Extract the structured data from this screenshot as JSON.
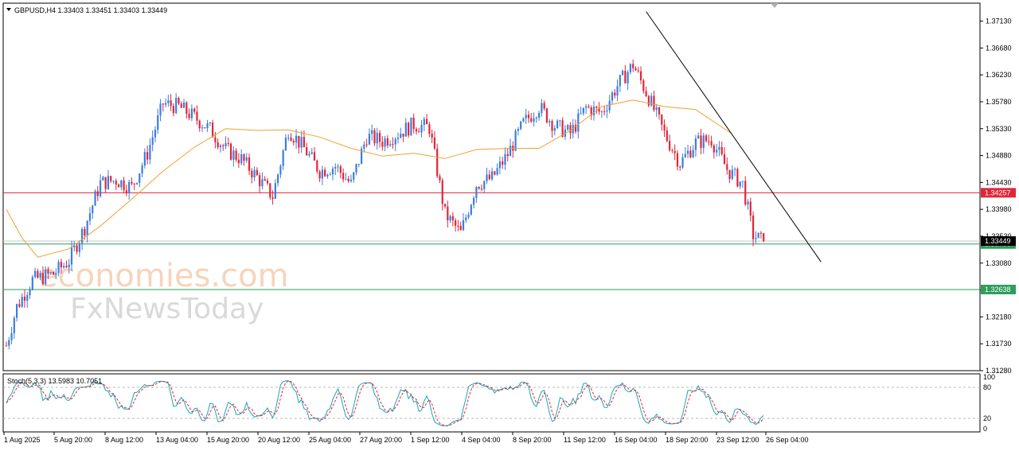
{
  "chart_data": {
    "type": "candlestick",
    "symbol_header": "GBPUSD,H4  1.33403 1.33451 1.33403 1.33449",
    "symbol": "GBPUSD",
    "timeframe": "H4",
    "ohlc": {
      "open": 1.33403,
      "high": 1.33451,
      "low": 1.33403,
      "close": 1.33449
    },
    "price_axis_ticks": [
      "1.37130",
      "1.36680",
      "1.36230",
      "1.35780",
      "1.35330",
      "1.34880",
      "1.34430",
      "1.33980",
      "1.33530",
      "1.33080",
      "1.32630",
      "1.32180",
      "1.31730",
      "1.31280"
    ],
    "ylim": [
      1.3128,
      1.3743
    ],
    "time_axis_labels": [
      "1 Aug 2025",
      "5 Aug 20:00",
      "8 Aug 12:00",
      "13 Aug 04:00",
      "15 Aug 20:00",
      "20 Aug 12:00",
      "25 Aug 04:00",
      "27 Aug 20:00",
      "1 Sep 12:00",
      "4 Sep 04:00",
      "8 Sep 20:00",
      "11 Sep 12:00",
      "16 Sep 04:00",
      "18 Sep 20:00",
      "23 Sep 12:00",
      "26 Sep 04:00"
    ],
    "horizontal_levels": [
      {
        "label": "1.34257",
        "value": 1.34257,
        "color": "#e0263a"
      },
      {
        "label": "1.33400",
        "value": 1.334,
        "color": "#2e9e5b"
      },
      {
        "label": "1.32638",
        "value": 1.32638,
        "color": "#2e9e5b"
      }
    ],
    "current_price": {
      "label": "1.33449",
      "value": 1.33449
    },
    "trendline": {
      "from": {
        "time": "16 Sep 04:00",
        "price": 1.3729
      },
      "to": {
        "time": "26 Sep 20:00",
        "price": 1.331
      }
    },
    "moving_average": [
      [
        0,
        1.3398
      ],
      [
        6,
        1.335
      ],
      [
        12,
        1.3318
      ],
      [
        24,
        1.3332
      ],
      [
        36,
        1.337
      ],
      [
        48,
        1.3415
      ],
      [
        60,
        1.3462
      ],
      [
        72,
        1.3502
      ],
      [
        84,
        1.3533
      ],
      [
        96,
        1.353
      ],
      [
        108,
        1.3531
      ],
      [
        120,
        1.3519
      ],
      [
        132,
        1.35
      ],
      [
        144,
        1.3487
      ],
      [
        156,
        1.3492
      ],
      [
        168,
        1.3483
      ],
      [
        180,
        1.3498
      ],
      [
        192,
        1.35
      ],
      [
        204,
        1.35
      ],
      [
        216,
        1.353
      ],
      [
        228,
        1.357
      ],
      [
        240,
        1.3581
      ],
      [
        252,
        1.357
      ],
      [
        264,
        1.3565
      ],
      [
        278,
        1.3524
      ]
    ],
    "price_path": [
      [
        0,
        1.317
      ],
      [
        4,
        1.3235
      ],
      [
        10,
        1.328
      ],
      [
        18,
        1.329
      ],
      [
        24,
        1.3312
      ],
      [
        30,
        1.3368
      ],
      [
        36,
        1.3442
      ],
      [
        42,
        1.3447
      ],
      [
        48,
        1.3435
      ],
      [
        54,
        1.3492
      ],
      [
        60,
        1.3575
      ],
      [
        66,
        1.357
      ],
      [
        72,
        1.3552
      ],
      [
        78,
        1.3532
      ],
      [
        84,
        1.3498
      ],
      [
        90,
        1.3482
      ],
      [
        96,
        1.3452
      ],
      [
        102,
        1.342
      ],
      [
        108,
        1.3532
      ],
      [
        114,
        1.35
      ],
      [
        120,
        1.3462
      ],
      [
        126,
        1.347
      ],
      [
        132,
        1.344
      ],
      [
        138,
        1.352
      ],
      [
        144,
        1.3512
      ],
      [
        150,
        1.3525
      ],
      [
        156,
        1.354
      ],
      [
        162,
        1.3535
      ],
      [
        168,
        1.339
      ],
      [
        174,
        1.3358
      ],
      [
        180,
        1.344
      ],
      [
        186,
        1.345
      ],
      [
        192,
        1.349
      ],
      [
        198,
        1.3542
      ],
      [
        204,
        1.357
      ],
      [
        210,
        1.3538
      ],
      [
        216,
        1.3525
      ],
      [
        222,
        1.3568
      ],
      [
        228,
        1.356
      ],
      [
        234,
        1.3605
      ],
      [
        240,
        1.364
      ],
      [
        246,
        1.3585
      ],
      [
        252,
        1.3525
      ],
      [
        258,
        1.3475
      ],
      [
        264,
        1.351
      ],
      [
        270,
        1.3515
      ],
      [
        276,
        1.3465
      ],
      [
        282,
        1.344
      ],
      [
        286,
        1.3355
      ],
      [
        290,
        1.3343
      ]
    ],
    "indicator": {
      "label": "Stoch(5,3,3) 13.5983 10.7051",
      "levels": [
        "80",
        "20"
      ],
      "axis_ticks": [
        "100",
        "80",
        "20",
        "0"
      ],
      "main_color": "#1aa6b7",
      "signal_color": "#e0263a"
    },
    "watermark": {
      "line1": "economies.com",
      "line2": "FxNewsToday"
    },
    "colors": {
      "bull": "#3b7de0",
      "bear": "#e0263a",
      "ma": "#f0a030",
      "trend": "#000000"
    }
  }
}
